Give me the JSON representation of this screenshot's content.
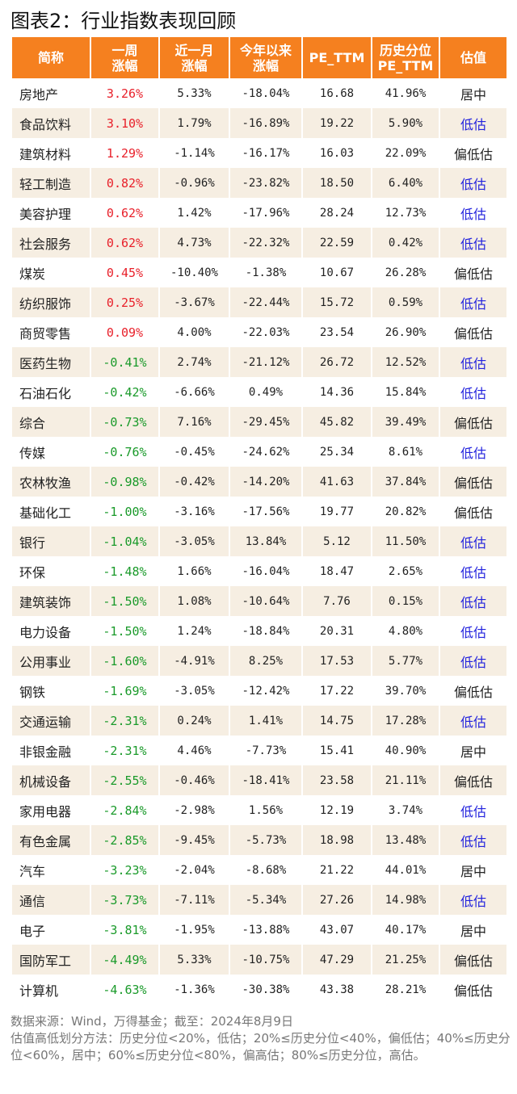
{
  "title": "图表2：行业指数表现回顾",
  "colors": {
    "header": "#f5801f",
    "up": "#e8202a",
    "down": "#1a9a2a",
    "low": "#2222dd",
    "alt_row": "#f6eee2"
  },
  "headers": [
    "简称",
    "一周\n涨幅",
    "近一月\n涨幅",
    "今年以来\n涨幅",
    "PE_TTM",
    "历史分位\nPE_TTM",
    "估值"
  ],
  "rows": [
    [
      "房地产",
      "3.26%",
      "5.33%",
      "-18.04%",
      "16.68",
      "41.96%",
      "居中"
    ],
    [
      "食品饮料",
      "3.10%",
      "1.79%",
      "-16.89%",
      "19.22",
      "5.90%",
      "低估"
    ],
    [
      "建筑材料",
      "1.29%",
      "-1.14%",
      "-16.17%",
      "16.03",
      "22.09%",
      "偏低估"
    ],
    [
      "轻工制造",
      "0.82%",
      "-0.96%",
      "-23.82%",
      "18.50",
      "6.40%",
      "低估"
    ],
    [
      "美容护理",
      "0.62%",
      "1.42%",
      "-17.96%",
      "28.24",
      "12.73%",
      "低估"
    ],
    [
      "社会服务",
      "0.62%",
      "4.73%",
      "-22.32%",
      "22.59",
      "0.42%",
      "低估"
    ],
    [
      "煤炭",
      "0.45%",
      "-10.40%",
      "-1.38%",
      "10.67",
      "26.28%",
      "偏低估"
    ],
    [
      "纺织服饰",
      "0.25%",
      "-3.67%",
      "-22.44%",
      "15.72",
      "0.59%",
      "低估"
    ],
    [
      "商贸零售",
      "0.09%",
      "4.00%",
      "-22.03%",
      "23.54",
      "26.90%",
      "偏低估"
    ],
    [
      "医药生物",
      "-0.41%",
      "2.74%",
      "-21.12%",
      "26.72",
      "12.52%",
      "低估"
    ],
    [
      "石油石化",
      "-0.42%",
      "-6.66%",
      "0.49%",
      "14.36",
      "15.84%",
      "低估"
    ],
    [
      "综合",
      "-0.73%",
      "7.16%",
      "-29.45%",
      "45.82",
      "39.49%",
      "偏低估"
    ],
    [
      "传媒",
      "-0.76%",
      "-0.45%",
      "-24.62%",
      "25.34",
      "8.61%",
      "低估"
    ],
    [
      "农林牧渔",
      "-0.98%",
      "-0.42%",
      "-14.20%",
      "41.63",
      "37.84%",
      "偏低估"
    ],
    [
      "基础化工",
      "-1.00%",
      "-3.16%",
      "-17.56%",
      "19.77",
      "20.82%",
      "偏低估"
    ],
    [
      "银行",
      "-1.04%",
      "-3.05%",
      "13.84%",
      "5.12",
      "11.50%",
      "低估"
    ],
    [
      "环保",
      "-1.48%",
      "1.66%",
      "-16.04%",
      "18.47",
      "2.65%",
      "低估"
    ],
    [
      "建筑装饰",
      "-1.50%",
      "1.08%",
      "-10.64%",
      "7.76",
      "0.15%",
      "低估"
    ],
    [
      "电力设备",
      "-1.50%",
      "1.24%",
      "-18.84%",
      "20.31",
      "4.80%",
      "低估"
    ],
    [
      "公用事业",
      "-1.60%",
      "-4.91%",
      "8.25%",
      "17.53",
      "5.77%",
      "低估"
    ],
    [
      "钢铁",
      "-1.69%",
      "-3.05%",
      "-12.42%",
      "17.22",
      "39.70%",
      "偏低估"
    ],
    [
      "交通运输",
      "-2.31%",
      "0.24%",
      "1.41%",
      "14.75",
      "17.28%",
      "低估"
    ],
    [
      "非银金融",
      "-2.31%",
      "4.46%",
      "-7.73%",
      "15.41",
      "40.90%",
      "居中"
    ],
    [
      "机械设备",
      "-2.55%",
      "-0.46%",
      "-18.41%",
      "23.58",
      "21.11%",
      "偏低估"
    ],
    [
      "家用电器",
      "-2.84%",
      "-2.98%",
      "1.56%",
      "12.19",
      "3.74%",
      "低估"
    ],
    [
      "有色金属",
      "-2.85%",
      "-9.45%",
      "-5.73%",
      "18.98",
      "13.48%",
      "低估"
    ],
    [
      "汽车",
      "-3.23%",
      "-2.04%",
      "-8.68%",
      "21.22",
      "44.01%",
      "居中"
    ],
    [
      "通信",
      "-3.73%",
      "-7.11%",
      "-5.34%",
      "27.26",
      "14.98%",
      "低估"
    ],
    [
      "电子",
      "-3.81%",
      "-1.95%",
      "-13.88%",
      "43.07",
      "40.17%",
      "居中"
    ],
    [
      "国防军工",
      "-4.49%",
      "5.33%",
      "-10.75%",
      "47.29",
      "21.25%",
      "偏低估"
    ],
    [
      "计算机",
      "-4.63%",
      "-1.36%",
      "-30.38%",
      "43.38",
      "28.21%",
      "偏低估"
    ]
  ],
  "notes": [
    "数据来源：Wind，万得基金；截至：2024年8月9日",
    "估值高低划分方法：历史分位<20%，低估；20%≤历史分位<40%，偏低估；40%≤历史分位<60%，居中；60%≤历史分位<80%，偏高估；80%≤历史分位，高估。"
  ]
}
